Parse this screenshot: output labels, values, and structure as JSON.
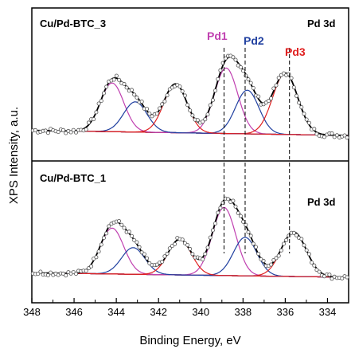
{
  "chart_data": {
    "type": "line",
    "xlabel": "Binding Energy, eV",
    "ylabel": "XPS Intensity, a.u.",
    "xlim": [
      348,
      333
    ],
    "x_reversed": true,
    "x_ticks": [
      348,
      346,
      344,
      342,
      340,
      338,
      336,
      334
    ],
    "grid": false,
    "colors": {
      "envelope": "#000000",
      "background": "#000000",
      "Pd1": "#c040b0",
      "Pd2": "#2040a0",
      "Pd3": "#e02020",
      "points": "#555555"
    },
    "panels": [
      {
        "sample": "Cu/Pd-BTC_3",
        "region": "Pd 3d",
        "ylim": [
          0,
          1.12
        ],
        "baseline": {
          "x": [
            348,
            333
          ],
          "y": [
            0.06,
            0.0
          ]
        },
        "components": [
          {
            "name": "Pd1",
            "label": "Pd1",
            "center": 338.8,
            "fwhm": 1.3,
            "height": 0.78,
            "color": "#c040b0"
          },
          {
            "name": "Pd2",
            "label": "Pd2",
            "center": 337.8,
            "fwhm": 1.3,
            "height": 0.52,
            "color": "#2040a0"
          },
          {
            "name": "Pd3",
            "label": "Pd3",
            "center": 336.0,
            "fwhm": 1.4,
            "height": 0.73,
            "color": "#e02020"
          },
          {
            "name": "Pd1-3d3/2",
            "center": 344.2,
            "fwhm": 1.3,
            "height": 0.58,
            "color": "#c040b0"
          },
          {
            "name": "Pd2-3d3/2",
            "center": 343.1,
            "fwhm": 1.3,
            "height": 0.36,
            "color": "#2040a0"
          },
          {
            "name": "Pd3-3d3/2",
            "center": 341.2,
            "fwhm": 1.3,
            "height": 0.58,
            "color": "#e02020"
          }
        ],
        "dashed_lines": [
          338.9,
          337.9,
          335.8
        ]
      },
      {
        "sample": "Cu/Pd-BTC_1",
        "region": "Pd 3d",
        "ylim": [
          0,
          1.12
        ],
        "baseline": {
          "x": [
            348,
            333
          ],
          "y": [
            0.06,
            0.0
          ]
        },
        "components": [
          {
            "name": "Pd1",
            "center": 338.9,
            "fwhm": 1.3,
            "height": 0.92,
            "color": "#c040b0"
          },
          {
            "name": "Pd2",
            "center": 337.9,
            "fwhm": 1.3,
            "height": 0.52,
            "color": "#2040a0"
          },
          {
            "name": "Pd3",
            "center": 335.6,
            "fwhm": 1.4,
            "height": 0.6,
            "color": "#e02020"
          },
          {
            "name": "Pd1-3d3/2",
            "center": 344.2,
            "fwhm": 1.3,
            "height": 0.62,
            "color": "#c040b0"
          },
          {
            "name": "Pd2-3d3/2",
            "center": 343.2,
            "fwhm": 1.3,
            "height": 0.36,
            "color": "#2040a0"
          },
          {
            "name": "Pd3-3d3/2",
            "center": 341.0,
            "fwhm": 1.3,
            "height": 0.48,
            "color": "#e02020"
          }
        ],
        "dashed_lines": [
          338.9,
          337.9,
          335.8
        ]
      }
    ]
  }
}
